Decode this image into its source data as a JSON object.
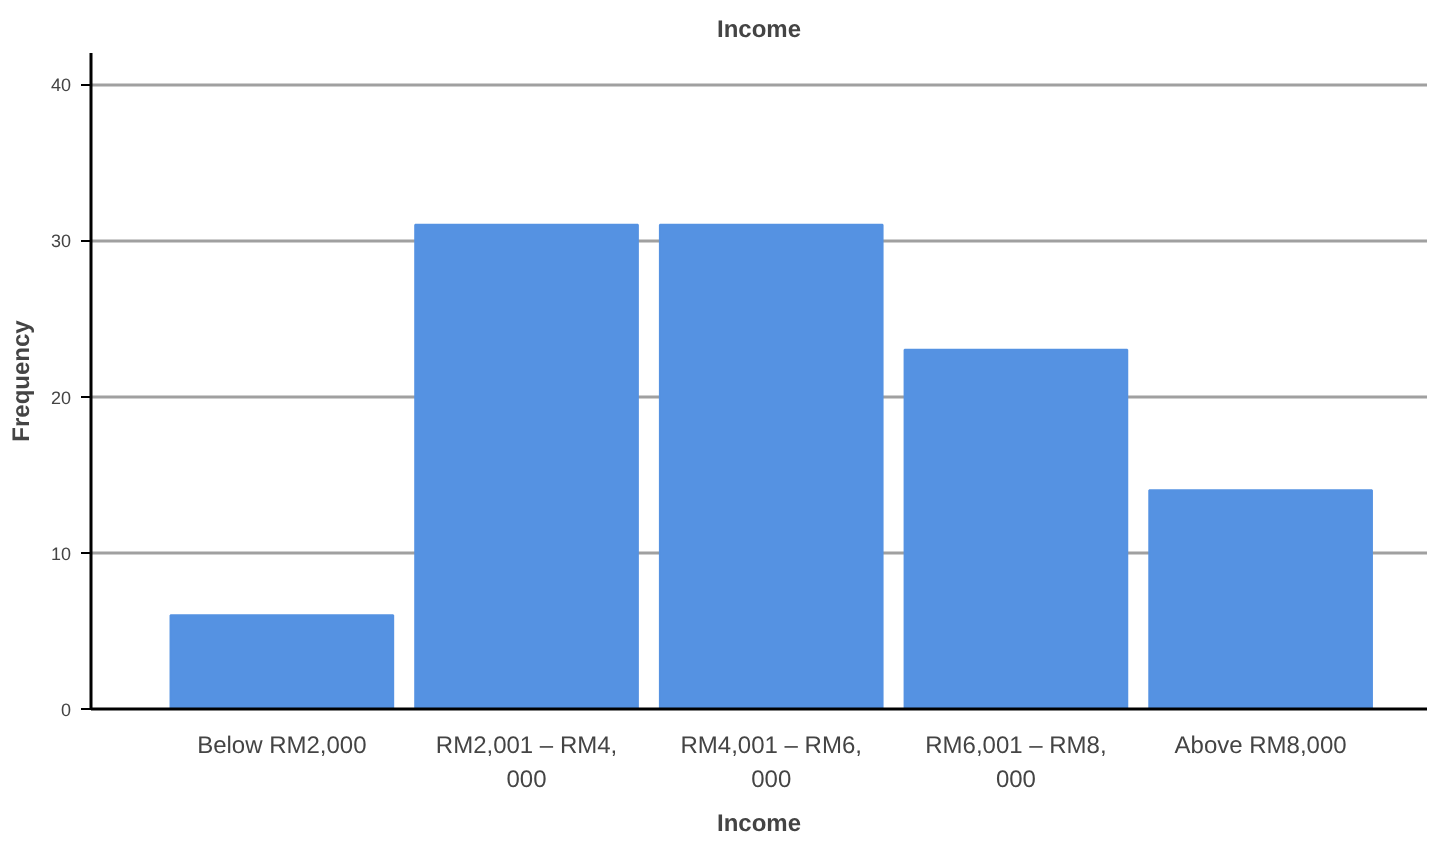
{
  "chart_data": {
    "type": "bar",
    "title": "Income",
    "xlabel": "Income",
    "ylabel": "Frequency",
    "categories": [
      "Below RM2,000",
      "RM2,001 – RM4,000",
      "RM4,001 – RM6,000",
      "RM6,001 – RM8,000",
      "Above RM8,000"
    ],
    "values": [
      6,
      31,
      31,
      23,
      14
    ],
    "color": "#5592e2",
    "ylim": [
      0,
      42
    ],
    "yticks": [
      0,
      10,
      20,
      30,
      40
    ],
    "grid": "y"
  }
}
